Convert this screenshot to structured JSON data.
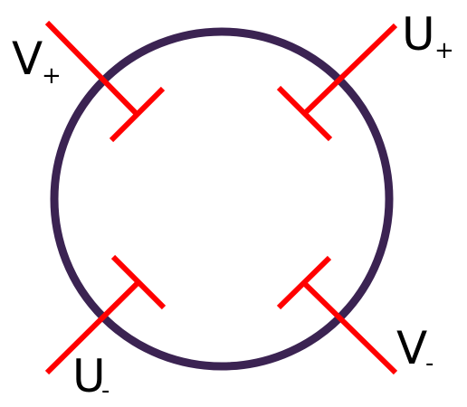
{
  "colors": {
    "ring": "#3b2352",
    "electrode": "#ff0000",
    "label": "#000000",
    "background": "#ffffff"
  },
  "labels": {
    "v_plus": {
      "base": "V",
      "sub": "+"
    },
    "u_plus": {
      "base": "U",
      "sub": "+"
    },
    "u_minus": {
      "base": "U",
      "sub": "-"
    },
    "v_minus": {
      "base": "V",
      "sub": "-"
    }
  }
}
